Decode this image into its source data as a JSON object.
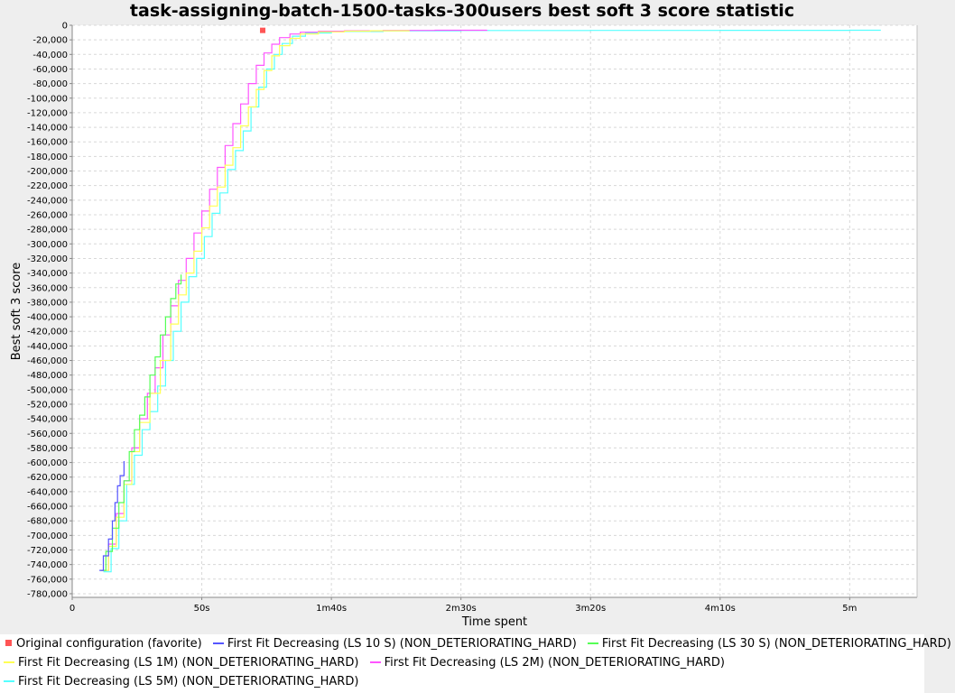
{
  "chart_data": {
    "type": "line",
    "title": "task-assigning-batch-1500-tasks-300users best soft 3 score statistic",
    "xlabel": "Time spent",
    "ylabel": "Best soft 3 score",
    "x_unit": "seconds",
    "xlim": [
      0,
      326
    ],
    "ylim": [
      -785000,
      0
    ],
    "x_ticks": [
      {
        "value": 0,
        "label": "0"
      },
      {
        "value": 50,
        "label": "50s"
      },
      {
        "value": 100,
        "label": "1m40s"
      },
      {
        "value": 150,
        "label": "2m30s"
      },
      {
        "value": 200,
        "label": "3m20s"
      },
      {
        "value": 250,
        "label": "4m10s"
      },
      {
        "value": 300,
        "label": "5m"
      }
    ],
    "y_ticks": [
      0,
      -20000,
      -40000,
      -60000,
      -80000,
      -100000,
      -120000,
      -140000,
      -160000,
      -180000,
      -200000,
      -220000,
      -240000,
      -260000,
      -280000,
      -300000,
      -320000,
      -340000,
      -360000,
      -380000,
      -400000,
      -420000,
      -440000,
      -460000,
      -480000,
      -500000,
      -520000,
      -540000,
      -560000,
      -580000,
      -600000,
      -620000,
      -640000,
      -660000,
      -680000,
      -700000,
      -720000,
      -740000,
      -760000,
      -780000
    ],
    "y_tick_labels": [
      "0",
      "-20,000",
      "-40,000",
      "-60,000",
      "-80,000",
      "-100,000",
      "-120,000",
      "-140,000",
      "-160,000",
      "-180,000",
      "-200,000",
      "-220,000",
      "-240,000",
      "-260,000",
      "-280,000",
      "-300,000",
      "-320,000",
      "-340,000",
      "-360,000",
      "-380,000",
      "-400,000",
      "-420,000",
      "-440,000",
      "-460,000",
      "-480,000",
      "-500,000",
      "-520,000",
      "-540,000",
      "-560,000",
      "-580,000",
      "-600,000",
      "-620,000",
      "-640,000",
      "-660,000",
      "-680,000",
      "-700,000",
      "-720,000",
      "-740,000",
      "-760,000",
      "-780,000"
    ],
    "grid": true,
    "legend_position": "bottom",
    "series": [
      {
        "name": "Original configuration (favorite)",
        "color": "#ff5555",
        "marker": "square",
        "x": [
          73.5
        ],
        "y": [
          -7000
        ]
      },
      {
        "name": "First Fit Decreasing (LS 10 S) (NON_DETERIORATING_HARD)",
        "color": "#5555ff",
        "x": [
          10.5,
          12,
          14,
          15.5,
          16.5,
          17.5,
          18.5,
          20
        ],
        "y": [
          -748000,
          -728000,
          -705000,
          -680000,
          -655000,
          -632000,
          -618000,
          -598000
        ]
      },
      {
        "name": "First Fit Decreasing (LS 30 S) (NON_DETERIORATING_HARD)",
        "color": "#55ff55",
        "x": [
          11,
          13,
          15.5,
          18,
          20,
          22,
          24,
          26,
          28,
          30,
          32,
          34,
          36,
          38,
          40,
          42
        ],
        "y": [
          -748000,
          -722000,
          -690000,
          -655000,
          -625000,
          -585000,
          -555000,
          -535000,
          -510000,
          -480000,
          -455000,
          -425000,
          -400000,
          -375000,
          -355000,
          -342000
        ]
      },
      {
        "name": "First Fit Decreasing (LS 1M) (NON_DETERIORATING_HARD)",
        "color": "#ffff55",
        "x": [
          11.5,
          14,
          17,
          20,
          23,
          26,
          30,
          34,
          38,
          41,
          44,
          47,
          50,
          53,
          56,
          59,
          62,
          65,
          68,
          71,
          74,
          77,
          80,
          84,
          88,
          95,
          105,
          115,
          130
        ],
        "y": [
          -748000,
          -715000,
          -675000,
          -630000,
          -585000,
          -545000,
          -505000,
          -460000,
          -410000,
          -370000,
          -340000,
          -310000,
          -278000,
          -248000,
          -222000,
          -192000,
          -168000,
          -138000,
          -112000,
          -88000,
          -62000,
          -42000,
          -28000,
          -18000,
          -12000,
          -9000,
          -8000,
          -7500,
          -7000
        ]
      },
      {
        "name": "First Fit Decreasing (LS 2M) (NON_DETERIORATING_HARD)",
        "color": "#ff55ff",
        "x": [
          11,
          14,
          17,
          20,
          23,
          26,
          29,
          32,
          35,
          38,
          41,
          44,
          47,
          50,
          53,
          56,
          59,
          62,
          65,
          68,
          71,
          74,
          77,
          80,
          84,
          88,
          95,
          105,
          120,
          140,
          160
        ],
        "y": [
          -748000,
          -712000,
          -670000,
          -625000,
          -580000,
          -540000,
          -505000,
          -470000,
          -425000,
          -385000,
          -350000,
          -320000,
          -285000,
          -255000,
          -225000,
          -195000,
          -165000,
          -135000,
          -108000,
          -80000,
          -55000,
          -38000,
          -26000,
          -17000,
          -12000,
          -9500,
          -8200,
          -7500,
          -7000,
          -6800,
          -6600
        ]
      },
      {
        "name": "First Fit Decreasing (LS 5M) (NON_DETERIORATING_HARD)",
        "color": "#55ffff",
        "x": [
          12,
          15,
          18,
          21,
          24,
          27,
          30,
          33,
          36,
          39,
          42,
          45,
          48,
          51,
          54,
          57,
          60,
          63,
          66,
          69,
          72,
          75,
          78,
          81,
          85,
          90,
          100,
          120,
          150,
          200,
          250,
          300,
          312
        ],
        "y": [
          -750000,
          -718000,
          -680000,
          -630000,
          -590000,
          -555000,
          -530000,
          -495000,
          -460000,
          -420000,
          -380000,
          -345000,
          -320000,
          -290000,
          -258000,
          -230000,
          -198000,
          -172000,
          -145000,
          -112000,
          -85000,
          -60000,
          -40000,
          -25000,
          -15000,
          -10500,
          -8500,
          -7500,
          -7200,
          -7000,
          -6900,
          -6800,
          -6800
        ]
      }
    ]
  }
}
